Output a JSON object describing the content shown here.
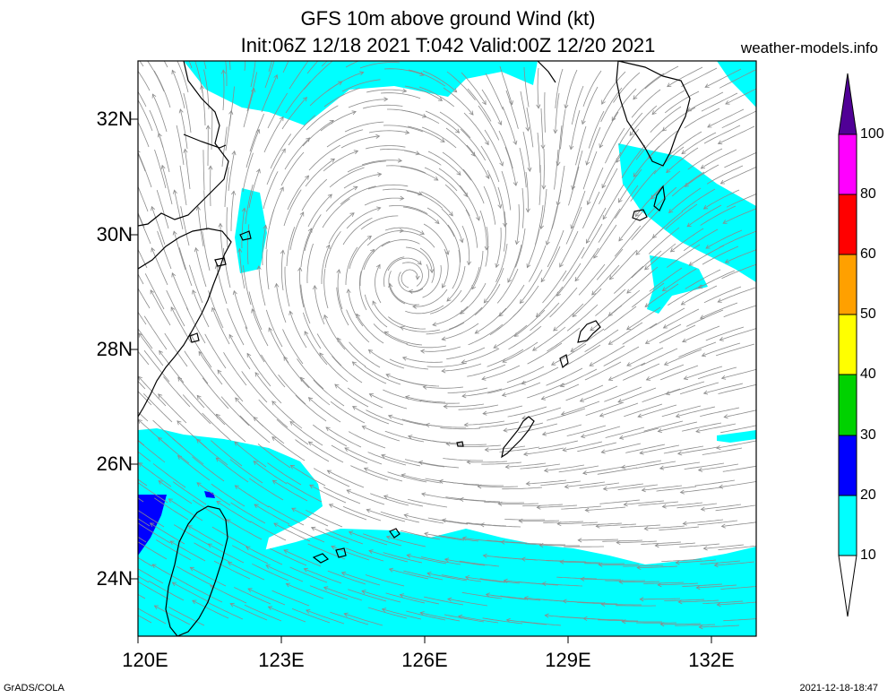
{
  "title_line1": "GFS 10m above ground Wind (kt)",
  "title_line2": "Init:06Z 12/18 2021 T:042 Valid:00Z 12/20 2021",
  "site": "weather-models.info",
  "footer_left": "GrADS/COLA",
  "footer_right": "2021-12-18-18:47",
  "map": {
    "lat_labels": [
      "32N",
      "30N",
      "28N",
      "26N",
      "24N"
    ],
    "lon_labels": [
      "120E",
      "123E",
      "126E",
      "129E",
      "132E"
    ],
    "streamline_color": "#8c8c8c",
    "coast_color": "#000000"
  },
  "colorbar": {
    "labels": [
      "10",
      "20",
      "30",
      "40",
      "50",
      "60",
      "80",
      "100"
    ],
    "colors": [
      "#00ffff",
      "#0000ff",
      "#00d200",
      "#ffff00",
      "#ffa000",
      "#ff0000",
      "#ff00ff",
      "#500096"
    ],
    "upper_arrow_color": "#500096"
  }
}
